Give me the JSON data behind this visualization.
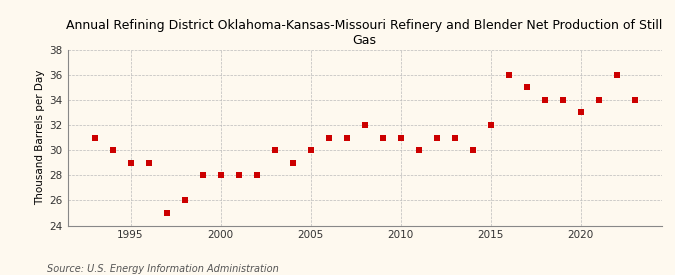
{
  "title": "Annual Refining District Oklahoma-Kansas-Missouri Refinery and Blender Net Production of Still\nGas",
  "ylabel": "Thousand Barrels per Day",
  "source": "Source: U.S. Energy Information Administration",
  "years": [
    1993,
    1994,
    1995,
    1996,
    1997,
    1998,
    1999,
    2000,
    2001,
    2002,
    2003,
    2004,
    2005,
    2006,
    2007,
    2008,
    2009,
    2010,
    2011,
    2012,
    2013,
    2014,
    2015,
    2016,
    2017,
    2018,
    2019,
    2020,
    2021,
    2022,
    2023
  ],
  "values": [
    31,
    30,
    29,
    29,
    25,
    26,
    28,
    28,
    28,
    28,
    30,
    29,
    30,
    31,
    31,
    32,
    31,
    31,
    30,
    31,
    31,
    30,
    32,
    36,
    35,
    34,
    34,
    33,
    34,
    36,
    34
  ],
  "ylim": [
    24,
    38
  ],
  "yticks": [
    24,
    26,
    28,
    30,
    32,
    34,
    36,
    38
  ],
  "xlim": [
    1991.5,
    2024.5
  ],
  "xticks": [
    1995,
    2000,
    2005,
    2010,
    2015,
    2020
  ],
  "marker_color": "#cc0000",
  "marker": "s",
  "marker_size": 16,
  "bg_color": "#fef9ef",
  "grid_color": "#bbbbbb",
  "title_fontsize": 9,
  "label_fontsize": 7.5,
  "tick_fontsize": 7.5,
  "source_fontsize": 7
}
